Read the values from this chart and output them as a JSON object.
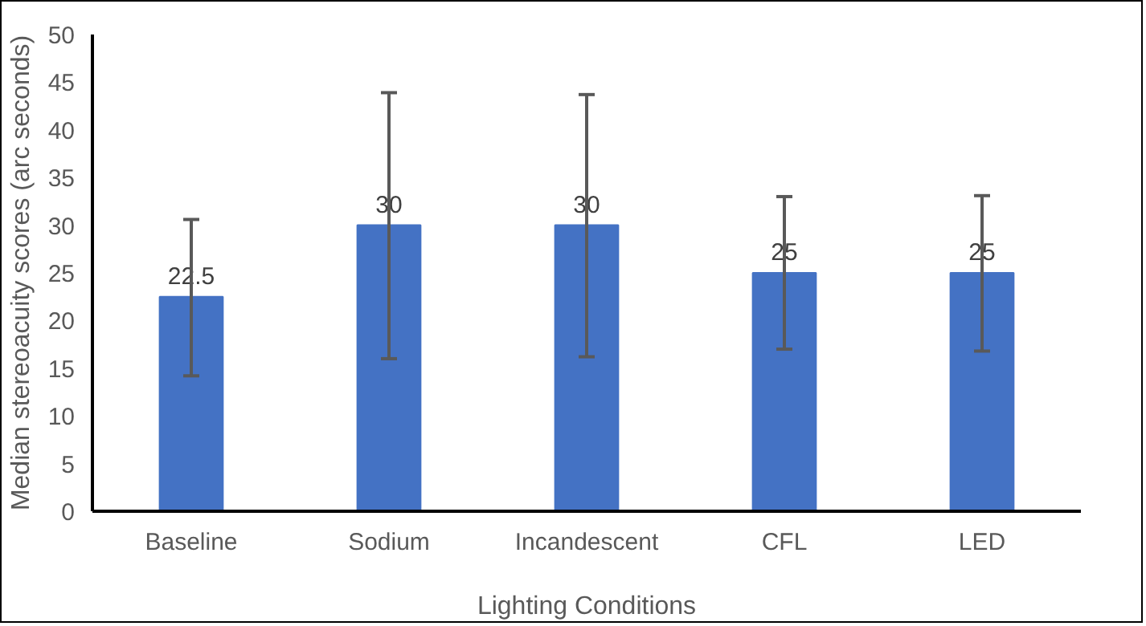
{
  "chart_data": {
    "type": "bar",
    "xlabel": "Lighting Conditions",
    "ylabel": "Median stereoacuity scores (arc seconds)",
    "categories": [
      "Baseline",
      "Sodium",
      "Incandescent",
      "CFL",
      "LED"
    ],
    "values": [
      22.5,
      30,
      30,
      25,
      25
    ],
    "errors": [
      [
        14.2,
        30.6
      ],
      [
        16.0,
        43.9
      ],
      [
        16.2,
        43.7
      ],
      [
        17.0,
        33.0
      ],
      [
        16.8,
        33.1
      ]
    ],
    "color": "#4472c4",
    "data_labels": true,
    "grid": false,
    "ylim": [
      0,
      50
    ],
    "yticks": [
      0,
      5,
      10,
      15,
      20,
      25,
      30,
      35,
      40,
      45,
      50
    ]
  }
}
